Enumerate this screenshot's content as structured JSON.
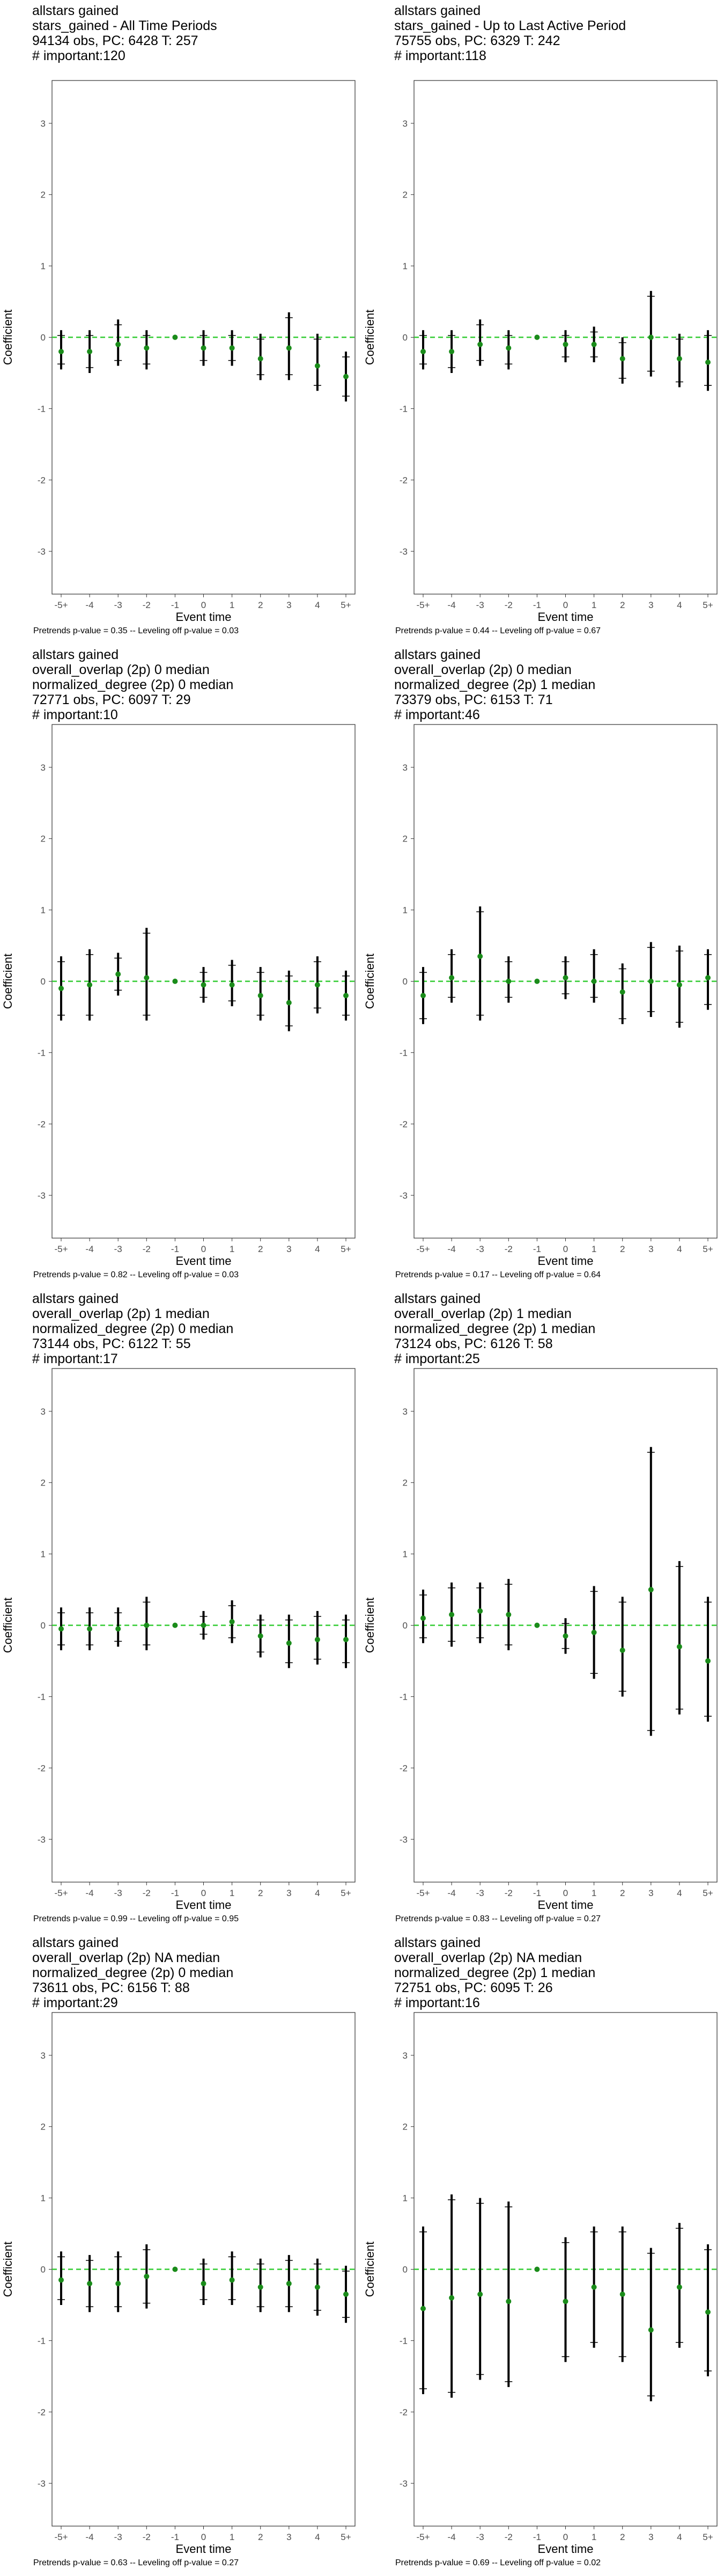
{
  "chart_data": [
    {
      "type": "scatter",
      "title_lines": [
        "allstars gained",
        "stars_gained - All Time Periods",
        "94134 obs, PC: 6428 T: 257",
        "# important:120"
      ],
      "footer": "Pretrends p-value = 0.35 -- Leveling off p-value = 0.03",
      "xlabel": "Event time",
      "ylabel": "Coefficient",
      "x_ticks": [
        "-5+",
        "-4",
        "-3",
        "-2",
        "-1",
        "0",
        "1",
        "2",
        "3",
        "4",
        "5+"
      ],
      "y_ticks": [
        -3,
        -2,
        -1,
        0,
        1,
        2,
        3
      ],
      "ylim": [
        -3.6,
        3.6
      ],
      "estimate": [
        -0.2,
        -0.2,
        -0.1,
        -0.15,
        0.0,
        -0.15,
        -0.15,
        -0.3,
        -0.15,
        -0.4,
        -0.55
      ],
      "ci_low": [
        -0.45,
        -0.5,
        -0.4,
        -0.45,
        0.0,
        -0.4,
        -0.4,
        -0.6,
        -0.6,
        -0.75,
        -0.9
      ],
      "ci_high": [
        0.1,
        0.1,
        0.25,
        0.1,
        0.0,
        0.1,
        0.1,
        0.05,
        0.35,
        0.05,
        -0.2
      ],
      "reference_line": 0
    },
    {
      "type": "scatter",
      "title_lines": [
        "allstars gained",
        "stars_gained - Up to Last Active Period",
        "75755 obs, PC: 6329 T: 242",
        "# important:118"
      ],
      "footer": "Pretrends p-value = 0.44 -- Leveling off p-value = 0.67",
      "xlabel": "Event time",
      "ylabel": "Coefficient",
      "x_ticks": [
        "-5+",
        "-4",
        "-3",
        "-2",
        "-1",
        "0",
        "1",
        "2",
        "3",
        "4",
        "5+"
      ],
      "y_ticks": [
        -3,
        -2,
        -1,
        0,
        1,
        2,
        3
      ],
      "ylim": [
        -3.6,
        3.6
      ],
      "estimate": [
        -0.2,
        -0.2,
        -0.1,
        -0.15,
        0.0,
        -0.1,
        -0.1,
        -0.3,
        0.0,
        -0.3,
        -0.35
      ],
      "ci_low": [
        -0.45,
        -0.5,
        -0.4,
        -0.45,
        0.0,
        -0.35,
        -0.35,
        -0.65,
        -0.55,
        -0.7,
        -0.75
      ],
      "ci_high": [
        0.1,
        0.1,
        0.25,
        0.1,
        0.0,
        0.1,
        0.15,
        0.0,
        0.65,
        0.05,
        0.1
      ],
      "reference_line": 0
    },
    {
      "type": "scatter",
      "title_lines": [
        "allstars gained",
        "overall_overlap (2p) 0 median",
        "normalized_degree (2p) 0 median",
        "72771 obs, PC: 6097 T: 29",
        "# important:10"
      ],
      "footer": "Pretrends p-value = 0.82 -- Leveling off p-value = 0.03",
      "xlabel": "Event time",
      "ylabel": "Coefficient",
      "x_ticks": [
        "-5+",
        "-4",
        "-3",
        "-2",
        "-1",
        "0",
        "1",
        "2",
        "3",
        "4",
        "5+"
      ],
      "y_ticks": [
        -3,
        -2,
        -1,
        0,
        1,
        2,
        3
      ],
      "ylim": [
        -3.6,
        3.6
      ],
      "estimate": [
        -0.1,
        -0.05,
        0.1,
        0.05,
        0.0,
        -0.05,
        -0.05,
        -0.2,
        -0.3,
        -0.05,
        -0.2
      ],
      "ci_low": [
        -0.55,
        -0.55,
        -0.2,
        -0.55,
        0.0,
        -0.3,
        -0.35,
        -0.55,
        -0.7,
        -0.45,
        -0.55
      ],
      "ci_high": [
        0.35,
        0.45,
        0.4,
        0.75,
        0.0,
        0.2,
        0.3,
        0.2,
        0.15,
        0.35,
        0.15
      ],
      "reference_line": 0
    },
    {
      "type": "scatter",
      "title_lines": [
        "allstars gained",
        "overall_overlap (2p) 0 median",
        "normalized_degree (2p) 1 median",
        "73379 obs, PC: 6153 T: 71",
        "# important:46"
      ],
      "footer": "Pretrends p-value = 0.17 -- Leveling off p-value = 0.64",
      "xlabel": "Event time",
      "ylabel": "Coefficient",
      "x_ticks": [
        "-5+",
        "-4",
        "-3",
        "-2",
        "-1",
        "0",
        "1",
        "2",
        "3",
        "4",
        "5+"
      ],
      "y_ticks": [
        -3,
        -2,
        -1,
        0,
        1,
        2,
        3
      ],
      "ylim": [
        -3.6,
        3.6
      ],
      "estimate": [
        -0.2,
        0.05,
        0.35,
        0.0,
        0.0,
        0.05,
        0.0,
        -0.15,
        0.0,
        -0.05,
        0.05
      ],
      "ci_low": [
        -0.6,
        -0.3,
        -0.55,
        -0.3,
        0.0,
        -0.25,
        -0.3,
        -0.6,
        -0.5,
        -0.65,
        -0.4
      ],
      "ci_high": [
        0.2,
        0.45,
        1.05,
        0.35,
        0.0,
        0.35,
        0.45,
        0.25,
        0.55,
        0.5,
        0.45
      ],
      "reference_line": 0
    },
    {
      "type": "scatter",
      "title_lines": [
        "allstars gained",
        "overall_overlap (2p) 1 median",
        "normalized_degree (2p) 0 median",
        "73144 obs, PC: 6122 T: 55",
        "# important:17"
      ],
      "footer": "Pretrends p-value = 0.99 -- Leveling off p-value = 0.95",
      "xlabel": "Event time",
      "ylabel": "Coefficient",
      "x_ticks": [
        "-5+",
        "-4",
        "-3",
        "-2",
        "-1",
        "0",
        "1",
        "2",
        "3",
        "4",
        "5+"
      ],
      "y_ticks": [
        -3,
        -2,
        -1,
        0,
        1,
        2,
        3
      ],
      "ylim": [
        -3.6,
        3.6
      ],
      "estimate": [
        -0.05,
        -0.05,
        -0.05,
        0.0,
        0.0,
        0.0,
        0.05,
        -0.15,
        -0.25,
        -0.2,
        -0.2
      ],
      "ci_low": [
        -0.35,
        -0.35,
        -0.3,
        -0.35,
        0.0,
        -0.2,
        -0.25,
        -0.45,
        -0.6,
        -0.55,
        -0.6
      ],
      "ci_high": [
        0.25,
        0.25,
        0.25,
        0.4,
        0.0,
        0.2,
        0.35,
        0.15,
        0.15,
        0.2,
        0.15
      ],
      "reference_line": 0
    },
    {
      "type": "scatter",
      "title_lines": [
        "allstars gained",
        "overall_overlap (2p) 1 median",
        "normalized_degree (2p) 1 median",
        "73124 obs, PC: 6126 T: 58",
        "# important:25"
      ],
      "footer": "Pretrends p-value = 0.83 -- Leveling off p-value = 0.27",
      "xlabel": "Event time",
      "ylabel": "Coefficient",
      "x_ticks": [
        "-5+",
        "-4",
        "-3",
        "-2",
        "-1",
        "0",
        "1",
        "2",
        "3",
        "4",
        "5+"
      ],
      "y_ticks": [
        -3,
        -2,
        -1,
        0,
        1,
        2,
        3
      ],
      "ylim": [
        -3.6,
        3.6
      ],
      "estimate": [
        0.1,
        0.15,
        0.2,
        0.15,
        0.0,
        -0.15,
        -0.1,
        -0.35,
        0.5,
        -0.3,
        -0.5
      ],
      "ci_low": [
        -0.25,
        -0.3,
        -0.25,
        -0.35,
        0.0,
        -0.4,
        -0.75,
        -1.0,
        -1.55,
        -1.25,
        -1.35
      ],
      "ci_high": [
        0.5,
        0.6,
        0.6,
        0.65,
        0.0,
        0.1,
        0.55,
        0.4,
        2.5,
        0.9,
        0.4
      ],
      "reference_line": 0
    },
    {
      "type": "scatter",
      "title_lines": [
        "allstars gained",
        "overall_overlap (2p) NA median",
        "normalized_degree (2p) 0 median",
        "73611 obs, PC: 6156 T: 88",
        "# important:29"
      ],
      "footer": "Pretrends p-value = 0.63 -- Leveling off p-value = 0.27",
      "xlabel": "Event time",
      "ylabel": "Coefficient",
      "x_ticks": [
        "-5+",
        "-4",
        "-3",
        "-2",
        "-1",
        "0",
        "1",
        "2",
        "3",
        "4",
        "5+"
      ],
      "y_ticks": [
        -3,
        -2,
        -1,
        0,
        1,
        2,
        3
      ],
      "ylim": [
        -3.6,
        3.6
      ],
      "estimate": [
        -0.15,
        -0.2,
        -0.2,
        -0.1,
        0.0,
        -0.2,
        -0.15,
        -0.25,
        -0.2,
        -0.25,
        -0.35
      ],
      "ci_low": [
        -0.5,
        -0.6,
        -0.6,
        -0.55,
        0.0,
        -0.5,
        -0.5,
        -0.6,
        -0.6,
        -0.65,
        -0.75
      ],
      "ci_high": [
        0.25,
        0.2,
        0.25,
        0.35,
        0.0,
        0.15,
        0.25,
        0.15,
        0.2,
        0.15,
        0.05
      ],
      "reference_line": 0
    },
    {
      "type": "scatter",
      "title_lines": [
        "allstars gained",
        "overall_overlap (2p) NA median",
        "normalized_degree (2p) 1 median",
        "72751 obs, PC: 6095 T: 26",
        "# important:16"
      ],
      "footer": "Pretrends p-value = 0.69 -- Leveling off p-value = 0.02",
      "xlabel": "Event time",
      "ylabel": "Coefficient",
      "x_ticks": [
        "-5+",
        "-4",
        "-3",
        "-2",
        "-1",
        "0",
        "1",
        "2",
        "3",
        "4",
        "5+"
      ],
      "y_ticks": [
        -3,
        -2,
        -1,
        0,
        1,
        2,
        3
      ],
      "ylim": [
        -3.6,
        3.6
      ],
      "estimate": [
        -0.55,
        -0.4,
        -0.35,
        -0.45,
        0.0,
        -0.45,
        -0.25,
        -0.35,
        -0.85,
        -0.25,
        -0.6
      ],
      "ci_low": [
        -1.75,
        -1.8,
        -1.55,
        -1.65,
        0.0,
        -1.3,
        -1.1,
        -1.3,
        -1.85,
        -1.1,
        -1.5
      ],
      "ci_high": [
        0.6,
        1.05,
        1.0,
        0.95,
        0.0,
        0.45,
        0.6,
        0.6,
        0.3,
        0.65,
        0.35
      ],
      "reference_line": 0
    }
  ],
  "colors": {
    "point": "#1a8c1a",
    "reference_line": "#33cc33",
    "error_bar": "#000000",
    "panel_border": "#333333",
    "tick_label": "#4d4d4d"
  }
}
